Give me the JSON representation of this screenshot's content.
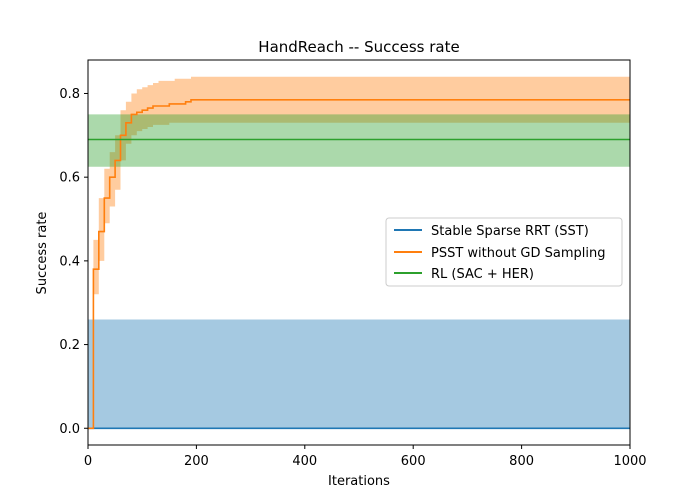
{
  "chart_data": {
    "type": "line",
    "title": "HandReach -- Success rate",
    "xlabel": "Iterations",
    "ylabel": "Success rate",
    "xlim": [
      0,
      1000
    ],
    "ylim": [
      -0.04,
      0.88
    ],
    "xticks": [
      0,
      200,
      400,
      600,
      800,
      1000
    ],
    "yticks": [
      0.0,
      0.2,
      0.4,
      0.6,
      0.8
    ],
    "grid": false,
    "legend_position": "center-right",
    "series": [
      {
        "name": "Stable Sparse RRT (SST)",
        "color": "#1f77b4",
        "x": [
          0,
          1000
        ],
        "y": [
          0.0,
          0.0
        ],
        "band_lower": [
          0.0,
          0.0
        ],
        "band_upper": [
          0.26,
          0.26
        ]
      },
      {
        "name": "PSST without GD Sampling",
        "color": "#ff7f0e",
        "step": true,
        "x": [
          0,
          5,
          10,
          20,
          30,
          40,
          50,
          60,
          70,
          80,
          90,
          100,
          110,
          120,
          130,
          150,
          160,
          180,
          190,
          200,
          1000
        ],
        "y": [
          0.0,
          0.0,
          0.38,
          0.47,
          0.55,
          0.6,
          0.64,
          0.7,
          0.73,
          0.75,
          0.755,
          0.76,
          0.765,
          0.77,
          0.77,
          0.775,
          0.775,
          0.78,
          0.785,
          0.785,
          0.785
        ],
        "band_lower": [
          0.0,
          0.0,
          0.32,
          0.4,
          0.49,
          0.53,
          0.57,
          0.64,
          0.68,
          0.7,
          0.71,
          0.715,
          0.72,
          0.725,
          0.725,
          0.73,
          0.73,
          0.73,
          0.73,
          0.73,
          0.73
        ],
        "band_upper": [
          0.0,
          0.0,
          0.45,
          0.55,
          0.62,
          0.66,
          0.7,
          0.76,
          0.78,
          0.8,
          0.81,
          0.815,
          0.82,
          0.825,
          0.83,
          0.83,
          0.835,
          0.835,
          0.84,
          0.84,
          0.84
        ]
      },
      {
        "name": "RL (SAC + HER)",
        "color": "#2ca02c",
        "x": [
          0,
          1000
        ],
        "y": [
          0.69,
          0.69
        ],
        "band_lower": [
          0.625,
          0.625
        ],
        "band_upper": [
          0.75,
          0.75
        ]
      }
    ]
  }
}
